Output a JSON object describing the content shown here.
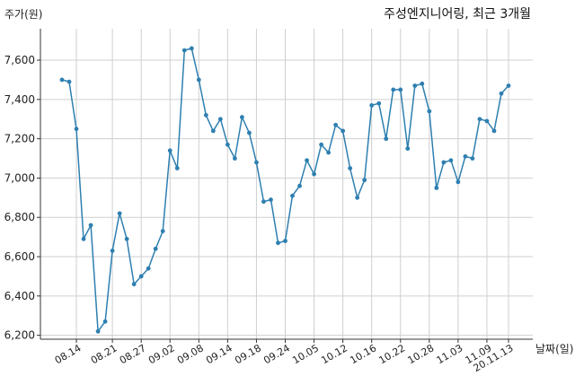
{
  "chart_data": {
    "type": "line",
    "title": "주성엔지니어링, 최근 3개월",
    "ylabel": "주가(원)",
    "xlabel": "날짜(일)",
    "ylim": [
      6180,
      7760
    ],
    "yticks": [
      6200,
      6400,
      6600,
      6800,
      7000,
      7200,
      7400,
      7600
    ],
    "ytick_labels": [
      "6,200",
      "6,400",
      "6,600",
      "6,800",
      "7,000",
      "7,200",
      "7,400",
      "7,600"
    ],
    "xtick_labels": [
      "08.14",
      "08.21",
      "08.27",
      "09.02",
      "09.08",
      "09.14",
      "09.18",
      "09.24",
      "10.05",
      "10.12",
      "10.16",
      "10.22",
      "10.28",
      "11.03",
      "11.09",
      "20.11.13"
    ],
    "xtick_index": [
      2,
      7,
      11,
      15,
      19,
      23,
      27,
      31,
      35,
      39,
      43,
      47,
      51,
      55,
      59,
      62
    ],
    "grid": true,
    "color": "#2e7fb0",
    "series": [
      {
        "values": [
          7500,
          7490,
          7250,
          6690,
          6760,
          6220,
          6270,
          6630,
          6820,
          6690,
          6460,
          6500,
          6540,
          6640,
          6730,
          7140,
          7050,
          7650,
          7660,
          7500,
          7320,
          7240,
          7300,
          7170,
          7100,
          7310,
          7230,
          7080,
          6880,
          6890,
          6670,
          6680,
          6910,
          6960,
          7090,
          7020,
          7170,
          7130,
          7270,
          7240,
          7050,
          6900,
          6990,
          7370,
          7380,
          7200,
          7450,
          7450,
          7150,
          7470,
          7480,
          7340,
          6950,
          7080,
          7090,
          6980,
          7110,
          7100,
          7300,
          7290,
          7240,
          7430,
          7470
        ]
      }
    ]
  }
}
